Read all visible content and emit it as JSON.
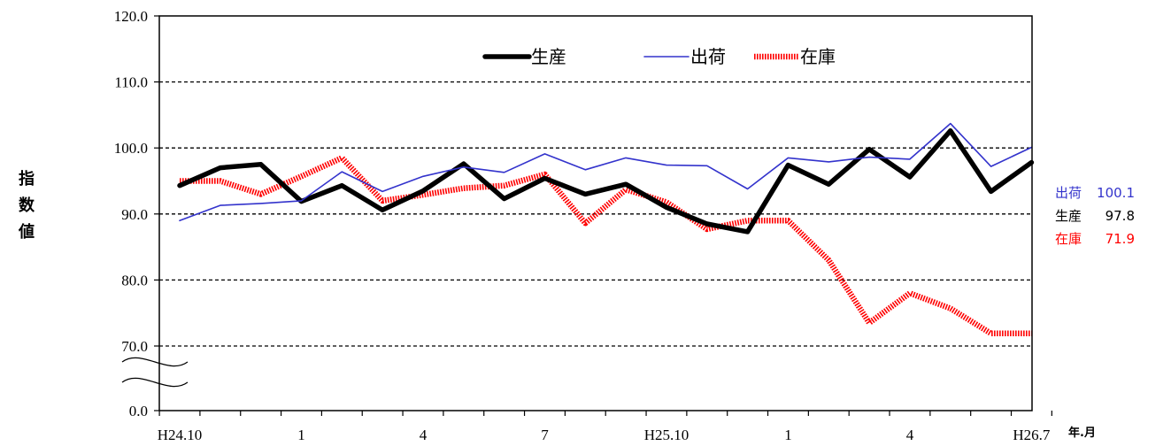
{
  "chart_data": {
    "type": "line",
    "ylabel": "指数値",
    "x_unit_label": "年.月",
    "y_ticks": [
      "120.0",
      "110.0",
      "100.0",
      "90.0",
      "80.0",
      "70.0",
      "0.0"
    ],
    "y_axis_break": {
      "from": 0,
      "to": 70
    },
    "ylim": [
      0,
      120
    ],
    "x_ticks": [
      {
        "index": 0,
        "label": "H24.10"
      },
      {
        "index": 3,
        "label": "1"
      },
      {
        "index": 6,
        "label": "4"
      },
      {
        "index": 9,
        "label": "7"
      },
      {
        "index": 12,
        "label": "H25.10"
      },
      {
        "index": 15,
        "label": "1"
      },
      {
        "index": 18,
        "label": "4"
      },
      {
        "index": 21,
        "label": "H26.7"
      }
    ],
    "grid": "dashed-horizontal",
    "legend_position": "top-center",
    "series": [
      {
        "name": "生産",
        "color": "#000000",
        "style": "thick-solid",
        "values": [
          94.3,
          97.0,
          97.5,
          91.9,
          94.3,
          90.6,
          93.5,
          97.6,
          92.3,
          95.4,
          93.0,
          94.5,
          91.0,
          88.5,
          87.3,
          97.4,
          94.5,
          99.8,
          95.6,
          102.6,
          93.4,
          97.8
        ]
      },
      {
        "name": "出荷",
        "color": "#3333cc",
        "style": "thin-solid",
        "values": [
          89.0,
          91.3,
          91.6,
          92.0,
          96.4,
          93.4,
          95.7,
          97.1,
          96.3,
          99.1,
          96.7,
          98.5,
          97.4,
          97.3,
          93.8,
          98.5,
          97.9,
          98.6,
          98.3,
          103.7,
          97.2,
          100.1
        ]
      },
      {
        "name": "在庫",
        "color": "#ff0000",
        "style": "thick-dotted",
        "values": [
          95.0,
          95.0,
          93.0,
          95.7,
          98.5,
          92.0,
          92.9,
          93.9,
          94.3,
          96.0,
          88.6,
          93.7,
          91.8,
          87.7,
          89.0,
          89.0,
          83.0,
          73.5,
          78.0,
          75.7,
          71.9,
          71.9
        ]
      }
    ],
    "latest_values": [
      {
        "name": "出荷",
        "value": "100.1",
        "color": "#3333cc"
      },
      {
        "name": "生産",
        "value": "97.8",
        "color": "#000000"
      },
      {
        "name": "在庫",
        "value": "71.9",
        "color": "#ff0000"
      }
    ]
  }
}
